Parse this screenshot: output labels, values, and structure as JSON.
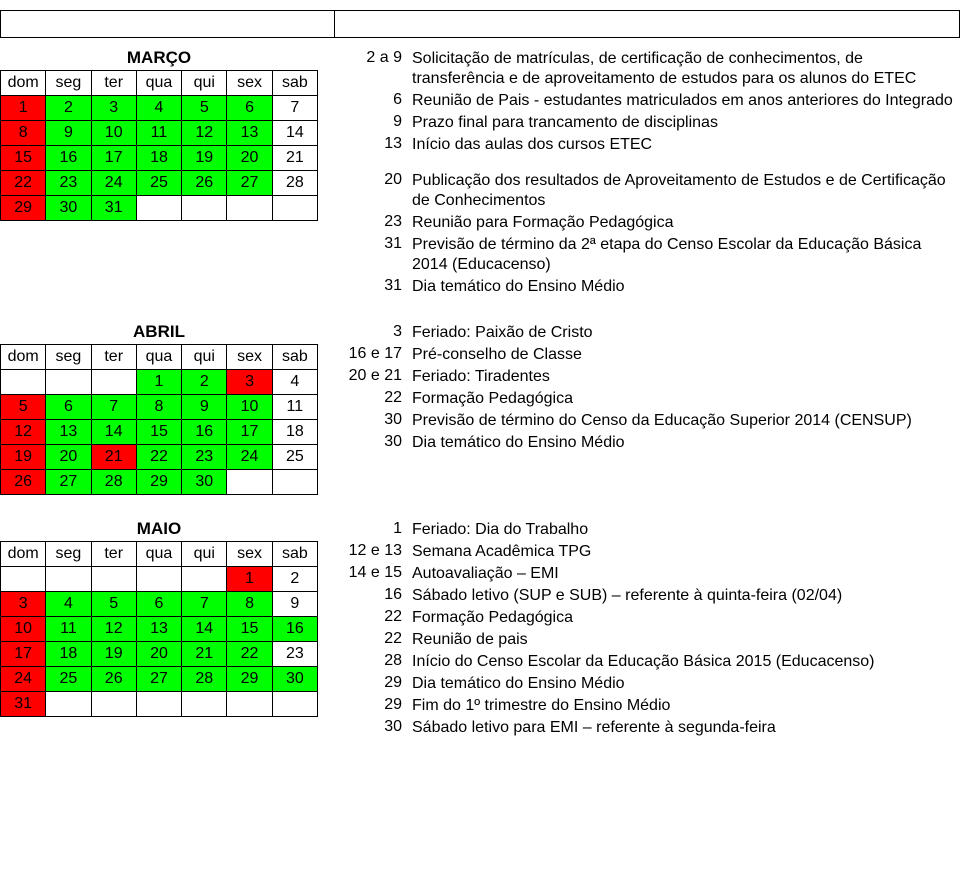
{
  "dow": [
    "dom",
    "seg",
    "ter",
    "qua",
    "qui",
    "sex",
    "sab"
  ],
  "colors": {
    "red": "#ff0000",
    "green": "#00ff00",
    "white": "#ffffff"
  },
  "months": {
    "marco": {
      "title": "MARÇO",
      "weeks": [
        [
          {
            "d": "1",
            "c": "red"
          },
          {
            "d": "2",
            "c": "green"
          },
          {
            "d": "3",
            "c": "green"
          },
          {
            "d": "4",
            "c": "green"
          },
          {
            "d": "5",
            "c": "green"
          },
          {
            "d": "6",
            "c": "green"
          },
          {
            "d": "7",
            "c": "white"
          }
        ],
        [
          {
            "d": "8",
            "c": "red"
          },
          {
            "d": "9",
            "c": "green"
          },
          {
            "d": "10",
            "c": "green"
          },
          {
            "d": "11",
            "c": "green"
          },
          {
            "d": "12",
            "c": "green"
          },
          {
            "d": "13",
            "c": "green"
          },
          {
            "d": "14",
            "c": "white"
          }
        ],
        [
          {
            "d": "15",
            "c": "red"
          },
          {
            "d": "16",
            "c": "green"
          },
          {
            "d": "17",
            "c": "green"
          },
          {
            "d": "18",
            "c": "green"
          },
          {
            "d": "19",
            "c": "green"
          },
          {
            "d": "20",
            "c": "green"
          },
          {
            "d": "21",
            "c": "white"
          }
        ],
        [
          {
            "d": "22",
            "c": "red"
          },
          {
            "d": "23",
            "c": "green"
          },
          {
            "d": "24",
            "c": "green"
          },
          {
            "d": "25",
            "c": "green"
          },
          {
            "d": "26",
            "c": "green"
          },
          {
            "d": "27",
            "c": "green"
          },
          {
            "d": "28",
            "c": "white"
          }
        ],
        [
          {
            "d": "29",
            "c": "red"
          },
          {
            "d": "30",
            "c": "green"
          },
          {
            "d": "31",
            "c": "green"
          },
          {
            "d": "",
            "c": "white"
          },
          {
            "d": "",
            "c": "white"
          },
          {
            "d": "",
            "c": "white"
          },
          {
            "d": "",
            "c": "white"
          }
        ]
      ],
      "events1": [
        {
          "date": "2 a 9",
          "desc": "Solicitação de matrículas, de certificação de conhecimentos, de transferência e de aproveitamento de estudos para os alunos do ETEC"
        },
        {
          "date": "6",
          "desc": "Reunião de Pais - estudantes matriculados em anos anteriores do Integrado"
        },
        {
          "date": "9",
          "desc": "Prazo final para trancamento de disciplinas"
        },
        {
          "date": "13",
          "desc": "Início das aulas dos cursos ETEC"
        }
      ],
      "events2": [
        {
          "date": "20",
          "desc": "Publicação dos resultados de Aproveitamento de Estudos e de Certificação de Conhecimentos"
        },
        {
          "date": "23",
          "desc": "Reunião para Formação Pedagógica"
        },
        {
          "date": "31",
          "desc": "Previsão de término da 2ª etapa do Censo Escolar da Educação Básica 2014 (Educacenso)"
        },
        {
          "date": "31",
          "desc": "Dia temático do Ensino Médio"
        }
      ]
    },
    "abril": {
      "title": "ABRIL",
      "weeks": [
        [
          {
            "d": "",
            "c": "white"
          },
          {
            "d": "",
            "c": "white"
          },
          {
            "d": "",
            "c": "white"
          },
          {
            "d": "1",
            "c": "green"
          },
          {
            "d": "2",
            "c": "green"
          },
          {
            "d": "3",
            "c": "red"
          },
          {
            "d": "4",
            "c": "white"
          }
        ],
        [
          {
            "d": "5",
            "c": "red"
          },
          {
            "d": "6",
            "c": "green"
          },
          {
            "d": "7",
            "c": "green"
          },
          {
            "d": "8",
            "c": "green"
          },
          {
            "d": "9",
            "c": "green"
          },
          {
            "d": "10",
            "c": "green"
          },
          {
            "d": "11",
            "c": "white"
          }
        ],
        [
          {
            "d": "12",
            "c": "red"
          },
          {
            "d": "13",
            "c": "green"
          },
          {
            "d": "14",
            "c": "green"
          },
          {
            "d": "15",
            "c": "green"
          },
          {
            "d": "16",
            "c": "green"
          },
          {
            "d": "17",
            "c": "green"
          },
          {
            "d": "18",
            "c": "white"
          }
        ],
        [
          {
            "d": "19",
            "c": "red"
          },
          {
            "d": "20",
            "c": "green"
          },
          {
            "d": "21",
            "c": "red"
          },
          {
            "d": "22",
            "c": "green"
          },
          {
            "d": "23",
            "c": "green"
          },
          {
            "d": "24",
            "c": "green"
          },
          {
            "d": "25",
            "c": "white"
          }
        ],
        [
          {
            "d": "26",
            "c": "red"
          },
          {
            "d": "27",
            "c": "green"
          },
          {
            "d": "28",
            "c": "green"
          },
          {
            "d": "29",
            "c": "green"
          },
          {
            "d": "30",
            "c": "green"
          },
          {
            "d": "",
            "c": "white"
          },
          {
            "d": "",
            "c": "white"
          }
        ]
      ],
      "events": [
        {
          "date": "3",
          "desc": "Feriado: Paixão de Cristo"
        },
        {
          "date": "16 e 17",
          "desc": "Pré-conselho de Classe"
        },
        {
          "date": "20 e 21",
          "desc": "Feriado: Tiradentes"
        },
        {
          "date": "22",
          "desc": "Formação Pedagógica"
        },
        {
          "date": "30",
          "desc": "Previsão de término do Censo da Educação Superior 2014 (CENSUP)"
        },
        {
          "date": "30",
          "desc": "Dia temático do Ensino Médio"
        }
      ]
    },
    "maio": {
      "title": "MAIO",
      "weeks": [
        [
          {
            "d": "",
            "c": "white"
          },
          {
            "d": "",
            "c": "white"
          },
          {
            "d": "",
            "c": "white"
          },
          {
            "d": "",
            "c": "white"
          },
          {
            "d": "",
            "c": "white"
          },
          {
            "d": "1",
            "c": "red"
          },
          {
            "d": "2",
            "c": "white"
          }
        ],
        [
          {
            "d": "3",
            "c": "red"
          },
          {
            "d": "4",
            "c": "green"
          },
          {
            "d": "5",
            "c": "green"
          },
          {
            "d": "6",
            "c": "green"
          },
          {
            "d": "7",
            "c": "green"
          },
          {
            "d": "8",
            "c": "green"
          },
          {
            "d": "9",
            "c": "white"
          }
        ],
        [
          {
            "d": "10",
            "c": "red"
          },
          {
            "d": "11",
            "c": "green"
          },
          {
            "d": "12",
            "c": "green"
          },
          {
            "d": "13",
            "c": "green"
          },
          {
            "d": "14",
            "c": "green"
          },
          {
            "d": "15",
            "c": "green"
          },
          {
            "d": "16",
            "c": "green"
          }
        ],
        [
          {
            "d": "17",
            "c": "red"
          },
          {
            "d": "18",
            "c": "green"
          },
          {
            "d": "19",
            "c": "green"
          },
          {
            "d": "20",
            "c": "green"
          },
          {
            "d": "21",
            "c": "green"
          },
          {
            "d": "22",
            "c": "green"
          },
          {
            "d": "23",
            "c": "white"
          }
        ],
        [
          {
            "d": "24",
            "c": "red"
          },
          {
            "d": "25",
            "c": "green"
          },
          {
            "d": "26",
            "c": "green"
          },
          {
            "d": "27",
            "c": "green"
          },
          {
            "d": "28",
            "c": "green"
          },
          {
            "d": "29",
            "c": "green"
          },
          {
            "d": "30",
            "c": "green"
          }
        ],
        [
          {
            "d": "31",
            "c": "red"
          },
          {
            "d": "",
            "c": "white"
          },
          {
            "d": "",
            "c": "white"
          },
          {
            "d": "",
            "c": "white"
          },
          {
            "d": "",
            "c": "white"
          },
          {
            "d": "",
            "c": "white"
          },
          {
            "d": "",
            "c": "white"
          }
        ]
      ],
      "events": [
        {
          "date": "1",
          "desc": "Feriado: Dia do Trabalho"
        },
        {
          "date": "12 e 13",
          "desc": "Semana Acadêmica TPG"
        },
        {
          "date": "14 e 15",
          "desc": "Autoavaliação – EMI"
        },
        {
          "date": "16",
          "desc": "Sábado letivo (SUP e SUB) – referente à quinta-feira (02/04)"
        },
        {
          "date": "22",
          "desc": "Formação Pedagógica"
        },
        {
          "date": "22",
          "desc": "Reunião de pais"
        },
        {
          "date": "28",
          "desc": "Início do Censo Escolar da Educação Básica 2015 (Educacenso)"
        },
        {
          "date": "29",
          "desc": "Dia temático do Ensino Médio"
        },
        {
          "date": "29",
          "desc": "Fim do 1º trimestre do Ensino Médio"
        },
        {
          "date": "30",
          "desc": "Sábado letivo para EMI – referente à segunda-feira"
        }
      ]
    }
  }
}
